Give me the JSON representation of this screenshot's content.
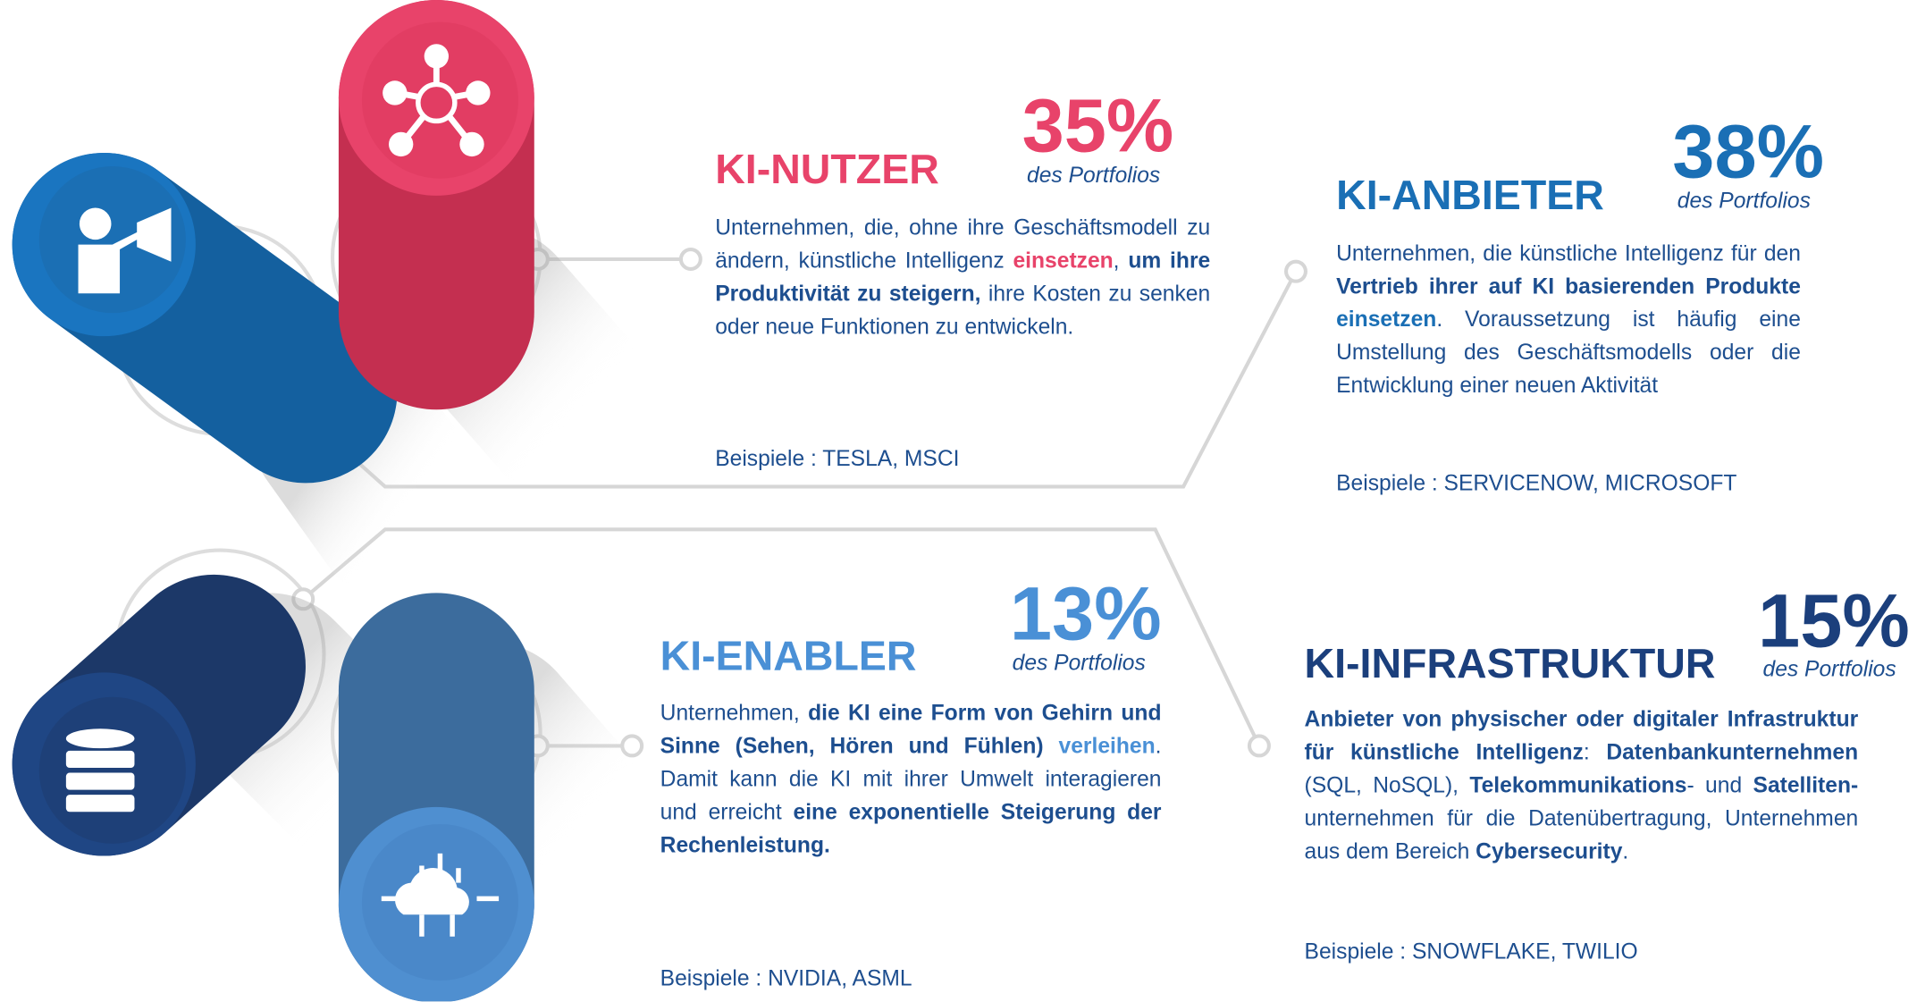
{
  "sections": [
    {
      "title": "KI-NUTZER",
      "percent": "35%",
      "percent_label": "des Portfolios",
      "description": [
        {
          "text": "Unternehmen, die, ohne ihre Geschäftsmodell zu ändern, künstliche Intelligenz "
        },
        {
          "text": "einsetzen",
          "bold": true,
          "color": "#e8436a"
        },
        {
          "text": ", "
        },
        {
          "text": "um ihre Produktivität zu steigern,",
          "bold": true
        },
        {
          "text": " ihre Kosten zu senken oder neue Funktionen zu entwickeln."
        }
      ],
      "examples": "Beispiele : TESLA, MSCI",
      "color": "#e8436a"
    },
    {
      "title": "KI-ANBIETER",
      "percent": "38%",
      "percent_label": "des Portfolios",
      "description": [
        {
          "text": "Unternehmen, die künstliche Intelligenz für den "
        },
        {
          "text": "Vertrieb ihrer auf KI basierenden Produkte ",
          "bold": true
        },
        {
          "text": "einsetzen",
          "bold": true,
          "color": "#1a6fb5"
        },
        {
          "text": ". Voraussetzung ist häufig eine Umstellung des Geschäftsmodells oder die Entwicklung einer neuen Aktivität"
        }
      ],
      "examples": "Beispiele : SERVICENOW, MICROSOFT",
      "color": "#1a6fb5"
    },
    {
      "title": "KI-ENABLER",
      "percent": "13%",
      "percent_label": "des Portfolios",
      "description": [
        {
          "text": "Unternehmen, "
        },
        {
          "text": "die KI eine Form von Gehirn und Sinne (Sehen, Hören und Fühlen) ",
          "bold": true
        },
        {
          "text": "verleihen",
          "bold": true,
          "color": "#4a90d6"
        },
        {
          "text": ". Damit kann die KI mit ihrer Umwelt interagieren und erreicht "
        },
        {
          "text": "eine exponentielle Steigerung der Rechenleistung.",
          "bold": true
        }
      ],
      "examples": "Beispiele : NVIDIA, ASML",
      "color": "#4a90d6"
    },
    {
      "title": "KI-INFRASTRUKTUR",
      "percent": "15%",
      "percent_label": "des Portfolios",
      "description": [
        {
          "text": "Anbieter von physischer oder digitaler Infrastruktur für künstliche Intelligenz",
          "bold": true
        },
        {
          "text": ": "
        },
        {
          "text": "Datenbankunternehmen",
          "bold": true
        },
        {
          "text": " (SQL, NoSQL), "
        },
        {
          "text": "Telekommunikations",
          "bold": true
        },
        {
          "text": "- und "
        },
        {
          "text": "Satelliten-",
          "bold": true
        },
        {
          "text": "unternehmen für die Datenübertragung, Unternehmen aus dem Bereich "
        },
        {
          "text": "Cybersecurity",
          "bold": true
        },
        {
          "text": "."
        }
      ],
      "examples": "Beispiele : SNOWFLAKE, TWILIO",
      "color": "#1b3f7c"
    }
  ]
}
